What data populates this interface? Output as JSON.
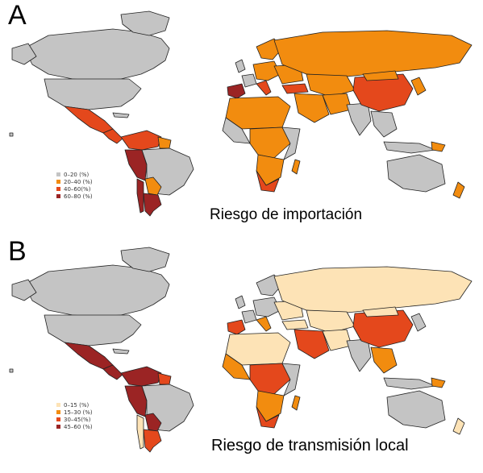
{
  "panels": [
    {
      "letter": "A",
      "caption": "Riesgo de importación",
      "legend": [
        {
          "label": "0–20 (%)",
          "color": "#c4c4c4"
        },
        {
          "label": "20–40 (%)",
          "color": "#f28c0f"
        },
        {
          "label": "40–60(%)",
          "color": "#e4481c"
        },
        {
          "label": "60–80 (%)",
          "color": "#9b2424"
        }
      ]
    },
    {
      "letter": "B",
      "caption": "Riesgo de transmisión local",
      "legend": [
        {
          "label": "0–15 (%)",
          "color": "#fde3b6"
        },
        {
          "label": "15–30 (%)",
          "color": "#f28c0f"
        },
        {
          "label": "30–45(%)",
          "color": "#e4481c"
        },
        {
          "label": "45–60 (%)",
          "color": "#9b2424"
        }
      ]
    }
  ],
  "colors": {
    "grey": "#c4c4c4",
    "cream": "#fde3b6",
    "orange": "#f28c0f",
    "red": "#e4481c",
    "dark_red": "#9b2424",
    "border": "#222222"
  }
}
